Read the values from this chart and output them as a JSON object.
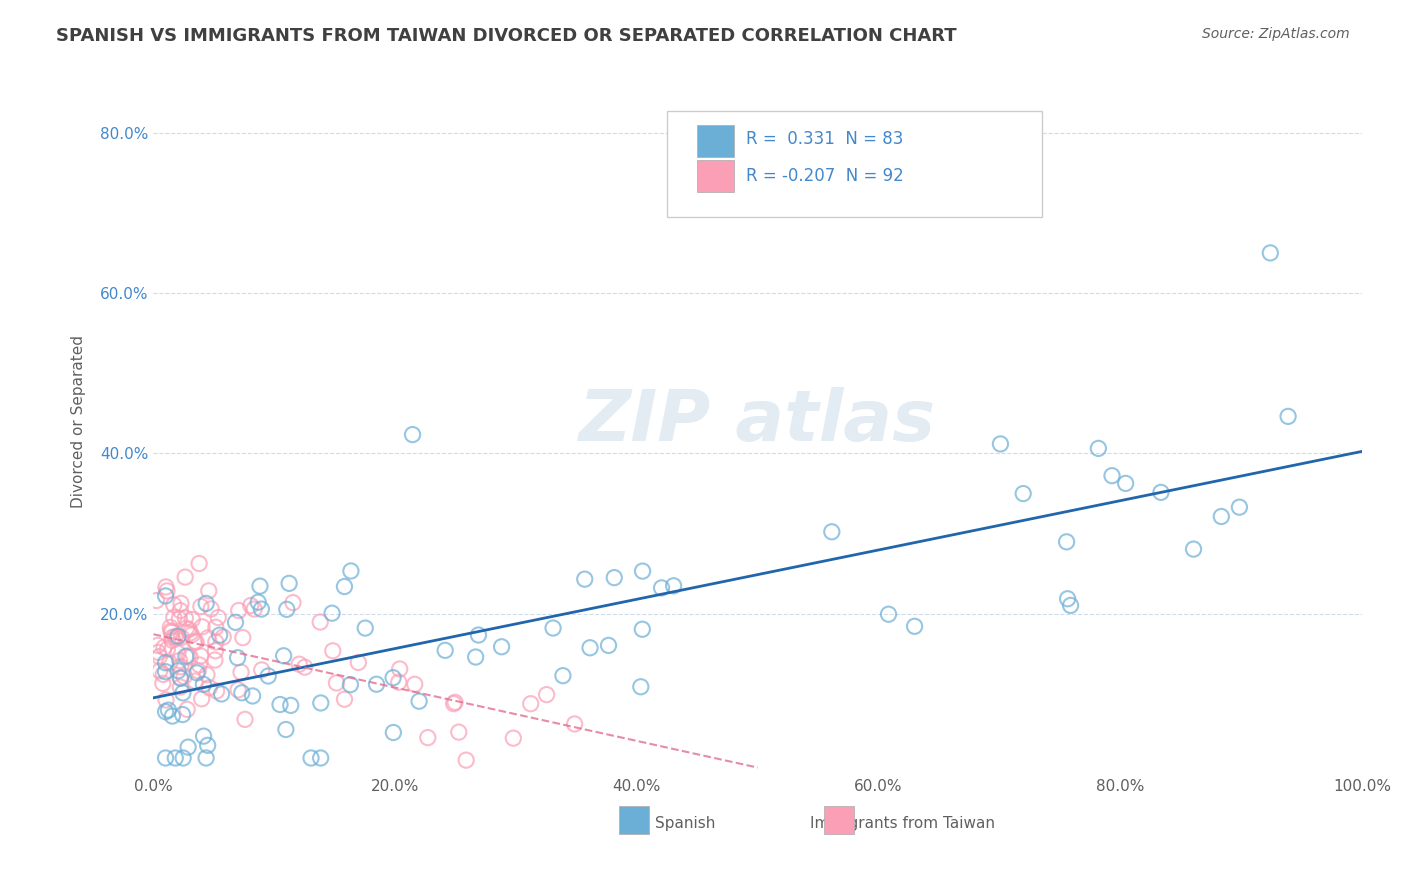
{
  "title": "SPANISH VS IMMIGRANTS FROM TAIWAN DIVORCED OR SEPARATED CORRELATION CHART",
  "source_text": "Source: ZipAtlas.com",
  "xlabel": "",
  "ylabel": "Divorced or Separated",
  "xlim": [
    0,
    1.0
  ],
  "ylim": [
    0,
    0.88
  ],
  "xticks": [
    0.0,
    0.2,
    0.4,
    0.6,
    0.8,
    1.0
  ],
  "xtick_labels": [
    "0.0%",
    "20.0%",
    "40.0%",
    "60.0%",
    "80.0%",
    "100.0%"
  ],
  "yticks": [
    0.0,
    0.2,
    0.4,
    0.6,
    0.8
  ],
  "ytick_labels": [
    "",
    "20.0%",
    "40.0%",
    "60.0%",
    "80.0%"
  ],
  "legend_R1": "0.331",
  "legend_N1": "83",
  "legend_R2": "-0.207",
  "legend_N2": "92",
  "blue_color": "#6baed6",
  "pink_color": "#fa9fb5",
  "blue_line_color": "#2166ac",
  "pink_line_color": "#e07090",
  "background_color": "#ffffff",
  "grid_color": "#c8d8e8",
  "title_color": "#404040",
  "axis_color": "#606060",
  "legend_text_color": "#4488cc",
  "seed_blue": 42,
  "seed_pink": 123,
  "n_blue": 83,
  "n_pink": 92
}
